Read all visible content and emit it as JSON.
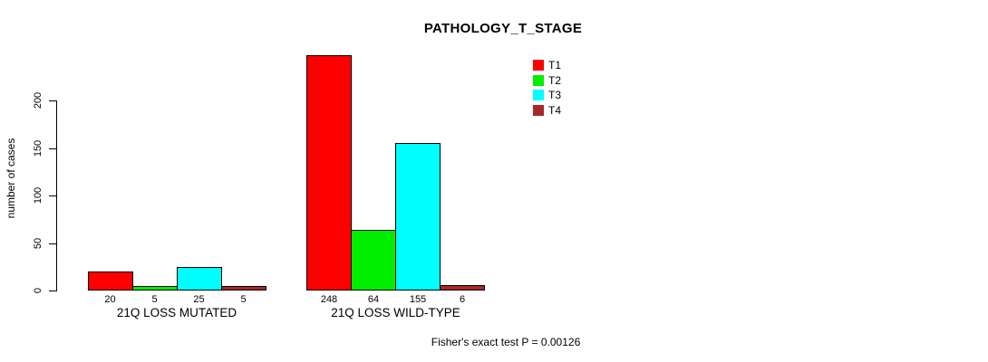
{
  "chart_data": {
    "type": "bar",
    "title": "PATHOLOGY_T_STAGE",
    "ylabel": "number of cases",
    "xlabel": "",
    "ylim": [
      0,
      200
    ],
    "yticks": [
      0,
      50,
      100,
      150,
      200
    ],
    "grid": false,
    "legend_position": "top-right",
    "categories": [
      "21Q LOSS MUTATED",
      "21Q LOSS WILD-TYPE"
    ],
    "series": [
      {
        "name": "T1",
        "color": "#ff0000",
        "values": [
          20,
          248
        ]
      },
      {
        "name": "T2",
        "color": "#00ee00",
        "values": [
          5,
          64
        ]
      },
      {
        "name": "T3",
        "color": "#00ffff",
        "values": [
          25,
          155
        ]
      },
      {
        "name": "T4",
        "color": "#a52a2a",
        "values": [
          5,
          6
        ]
      }
    ],
    "bar_labels": [
      [
        "20",
        "5",
        "25",
        "5"
      ],
      [
        "248",
        "64",
        "155",
        "6"
      ]
    ],
    "annotation": "Fisher's exact test P = 0.00126",
    "axis_color": "#000000",
    "text_color": "#000000",
    "background": "#ffffff"
  }
}
